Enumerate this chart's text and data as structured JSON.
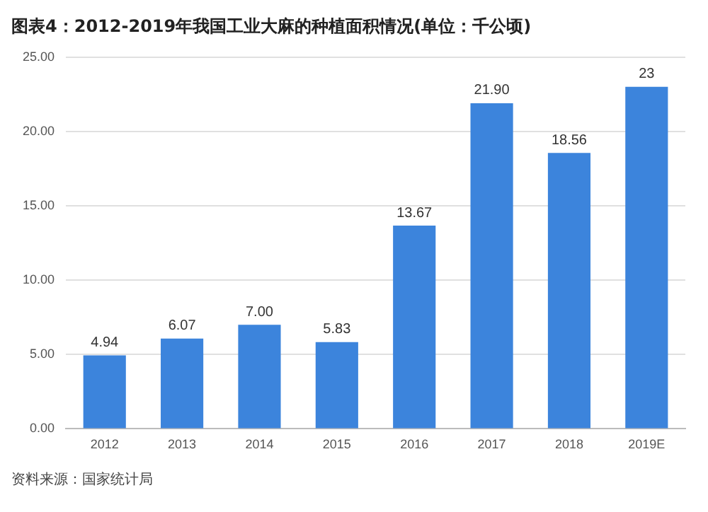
{
  "chart_data": {
    "type": "bar",
    "title": "图表4：2012-2019年我国工业大麻的种植面积情况(单位：千公顷)",
    "categories": [
      "2012",
      "2013",
      "2014",
      "2015",
      "2016",
      "2017",
      "2018",
      "2019E"
    ],
    "values": [
      4.94,
      6.07,
      7.0,
      5.83,
      13.67,
      21.9,
      18.56,
      23
    ],
    "value_labels": [
      "4.94",
      "6.07",
      "7.00",
      "5.83",
      "13.67",
      "21.90",
      "18.56",
      "23"
    ],
    "color": "#3c84dc",
    "ylim": [
      0,
      25
    ],
    "yticks": [
      {
        "value": 0,
        "label": "0.00"
      },
      {
        "value": 5,
        "label": "5.00"
      },
      {
        "value": 10,
        "label": "10.00"
      },
      {
        "value": 15,
        "label": "15.00"
      },
      {
        "value": 20,
        "label": "20.00"
      },
      {
        "value": 25,
        "label": "25.00"
      }
    ],
    "grid": "y",
    "annotations": [
      "资料来源：国家统计局"
    ]
  }
}
